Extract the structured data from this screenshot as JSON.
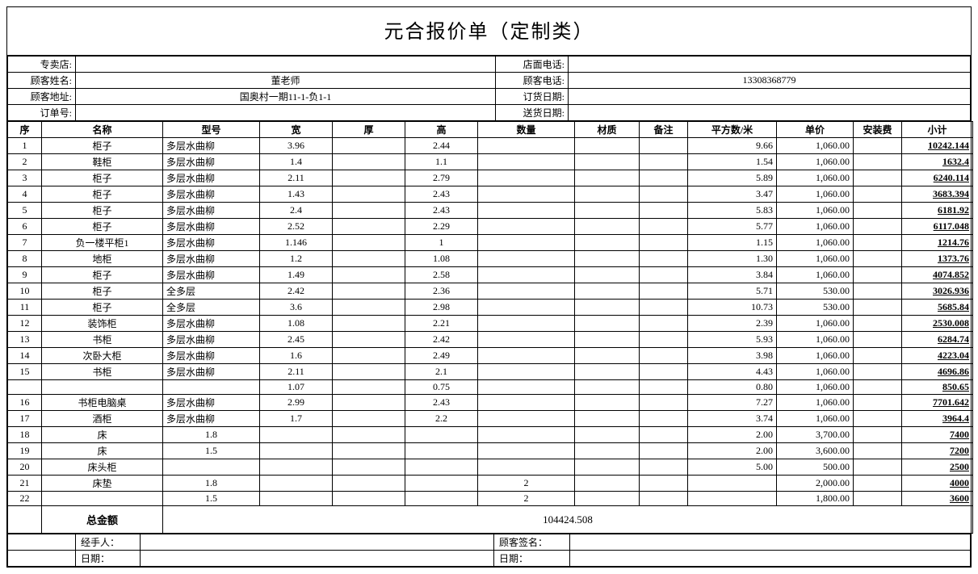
{
  "title": "元合报价单（定制类）",
  "info": {
    "store_label": "专卖店:",
    "store": "",
    "store_phone_label": "店面电话:",
    "store_phone": "",
    "cust_name_label": "顾客姓名:",
    "cust_name": "董老师",
    "cust_phone_label": "顾客电话:",
    "cust_phone": "13308368779",
    "cust_addr_label": "顾客地址:",
    "cust_addr": "国奥村一期11-1-负1-1",
    "order_date_label": "订货日期:",
    "order_date": "",
    "order_no_label": "订单号:",
    "order_no": "",
    "ship_date_label": "送货日期:",
    "ship_date": ""
  },
  "headers": {
    "seq": "序",
    "name": "名称",
    "model": "型号",
    "w": "宽",
    "t": "厚",
    "h": "高",
    "qty": "数量",
    "mat": "材质",
    "rem": "备注",
    "area": "平方数/米",
    "price": "单价",
    "inst": "安装费",
    "sub": "小计"
  },
  "rows": [
    {
      "seq": "1",
      "name": "柜子",
      "model": "多层水曲柳",
      "w": "3.96",
      "t": "",
      "h": "2.44",
      "qty": "",
      "mat": "",
      "rem": "",
      "area": "9.66",
      "price": "1,060.00",
      "inst": "",
      "sub": "10242.144"
    },
    {
      "seq": "2",
      "name": "鞋柜",
      "model": "多层水曲柳",
      "w": "1.4",
      "t": "",
      "h": "1.1",
      "qty": "",
      "mat": "",
      "rem": "",
      "area": "1.54",
      "price": "1,060.00",
      "inst": "",
      "sub": "1632.4"
    },
    {
      "seq": "3",
      "name": "柜子",
      "model": "多层水曲柳",
      "w": "2.11",
      "t": "",
      "h": "2.79",
      "qty": "",
      "mat": "",
      "rem": "",
      "area": "5.89",
      "price": "1,060.00",
      "inst": "",
      "sub": "6240.114"
    },
    {
      "seq": "4",
      "name": "柜子",
      "model": "多层水曲柳",
      "w": "1.43",
      "t": "",
      "h": "2.43",
      "qty": "",
      "mat": "",
      "rem": "",
      "area": "3.47",
      "price": "1,060.00",
      "inst": "",
      "sub": "3683.394"
    },
    {
      "seq": "5",
      "name": "柜子",
      "model": "多层水曲柳",
      "w": "2.4",
      "t": "",
      "h": "2.43",
      "qty": "",
      "mat": "",
      "rem": "",
      "area": "5.83",
      "price": "1,060.00",
      "inst": "",
      "sub": "6181.92"
    },
    {
      "seq": "6",
      "name": "柜子",
      "model": "多层水曲柳",
      "w": "2.52",
      "t": "",
      "h": "2.29",
      "qty": "",
      "mat": "",
      "rem": "",
      "area": "5.77",
      "price": "1,060.00",
      "inst": "",
      "sub": "6117.048"
    },
    {
      "seq": "7",
      "name": "负一楼平柜1",
      "model": "多层水曲柳",
      "w": "1.146",
      "t": "",
      "h": "1",
      "qty": "",
      "mat": "",
      "rem": "",
      "area": "1.15",
      "price": "1,060.00",
      "inst": "",
      "sub": "1214.76"
    },
    {
      "seq": "8",
      "name": "地柜",
      "model": "多层水曲柳",
      "w": "1.2",
      "t": "",
      "h": "1.08",
      "qty": "",
      "mat": "",
      "rem": "",
      "area": "1.30",
      "price": "1,060.00",
      "inst": "",
      "sub": "1373.76"
    },
    {
      "seq": "9",
      "name": "柜子",
      "model": "多层水曲柳",
      "w": "1.49",
      "t": "",
      "h": "2.58",
      "qty": "",
      "mat": "",
      "rem": "",
      "area": "3.84",
      "price": "1,060.00",
      "inst": "",
      "sub": "4074.852"
    },
    {
      "seq": "10",
      "name": "柜子",
      "model": "全多层",
      "w": "2.42",
      "t": "",
      "h": "2.36",
      "qty": "",
      "mat": "",
      "rem": "",
      "area": "5.71",
      "price": "530.00",
      "inst": "",
      "sub": "3026.936"
    },
    {
      "seq": "11",
      "name": "柜子",
      "model": "全多层",
      "w": "3.6",
      "t": "",
      "h": "2.98",
      "qty": "",
      "mat": "",
      "rem": "",
      "area": "10.73",
      "price": "530.00",
      "inst": "",
      "sub": "5685.84"
    },
    {
      "seq": "12",
      "name": "装饰柜",
      "model": "多层水曲柳",
      "w": "1.08",
      "t": "",
      "h": "2.21",
      "qty": "",
      "mat": "",
      "rem": "",
      "area": "2.39",
      "price": "1,060.00",
      "inst": "",
      "sub": "2530.008"
    },
    {
      "seq": "13",
      "name": "书柜",
      "model": "多层水曲柳",
      "w": "2.45",
      "t": "",
      "h": "2.42",
      "qty": "",
      "mat": "",
      "rem": "",
      "area": "5.93",
      "price": "1,060.00",
      "inst": "",
      "sub": "6284.74"
    },
    {
      "seq": "14",
      "name": "次卧大柜",
      "model": "多层水曲柳",
      "w": "1.6",
      "t": "",
      "h": "2.49",
      "qty": "",
      "mat": "",
      "rem": "",
      "area": "3.98",
      "price": "1,060.00",
      "inst": "",
      "sub": "4223.04"
    },
    {
      "seq": "15",
      "name": "书柜",
      "model": "多层水曲柳",
      "w": "2.11",
      "t": "",
      "h": "2.1",
      "qty": "",
      "mat": "",
      "rem": "",
      "area": "4.43",
      "price": "1,060.00",
      "inst": "",
      "sub": "4696.86"
    },
    {
      "seq": "",
      "name": "",
      "model": "",
      "w": "1.07",
      "t": "",
      "h": "0.75",
      "qty": "",
      "mat": "",
      "rem": "",
      "area": "0.80",
      "price": "1,060.00",
      "inst": "",
      "sub": "850.65"
    },
    {
      "seq": "16",
      "name": "书柜电脑桌",
      "model": "多层水曲柳",
      "w": "2.99",
      "t": "",
      "h": "2.43",
      "qty": "",
      "mat": "",
      "rem": "",
      "area": "7.27",
      "price": "1,060.00",
      "inst": "",
      "sub": "7701.642"
    },
    {
      "seq": "17",
      "name": "酒柜",
      "model": "多层水曲柳",
      "w": "1.7",
      "t": "",
      "h": "2.2",
      "qty": "",
      "mat": "",
      "rem": "",
      "area": "3.74",
      "price": "1,060.00",
      "inst": "",
      "sub": "3964.4"
    },
    {
      "seq": "18",
      "name": "床",
      "model": "1.8",
      "w": "",
      "t": "",
      "h": "",
      "qty": "",
      "mat": "",
      "rem": "",
      "area": "2.00",
      "price": "3,700.00",
      "inst": "",
      "sub": "7400"
    },
    {
      "seq": "19",
      "name": "床",
      "model": "1.5",
      "w": "",
      "t": "",
      "h": "",
      "qty": "",
      "mat": "",
      "rem": "",
      "area": "2.00",
      "price": "3,600.00",
      "inst": "",
      "sub": "7200"
    },
    {
      "seq": "20",
      "name": "床头柜",
      "model": "",
      "w": "",
      "t": "",
      "h": "",
      "qty": "",
      "mat": "",
      "rem": "",
      "area": "5.00",
      "price": "500.00",
      "inst": "",
      "sub": "2500"
    },
    {
      "seq": "21",
      "name": "床垫",
      "model": "1.8",
      "w": "",
      "t": "",
      "h": "",
      "qty": "2",
      "mat": "",
      "rem": "",
      "area": "",
      "price": "2,000.00",
      "inst": "",
      "sub": "4000"
    },
    {
      "seq": "22",
      "name": "",
      "model": "1.5",
      "w": "",
      "t": "",
      "h": "",
      "qty": "2",
      "mat": "",
      "rem": "",
      "area": "",
      "price": "1,800.00",
      "inst": "",
      "sub": "3600"
    }
  ],
  "total": {
    "label": "总金额",
    "value": "104424.508"
  },
  "sig": {
    "handler_label": "经手人：",
    "handler": "",
    "cust_sign_label": "顾客签名：",
    "cust_sign": "",
    "date_label_left": "日期：",
    "date_left": "",
    "date_label_right": "日期：",
    "date_right": ""
  }
}
